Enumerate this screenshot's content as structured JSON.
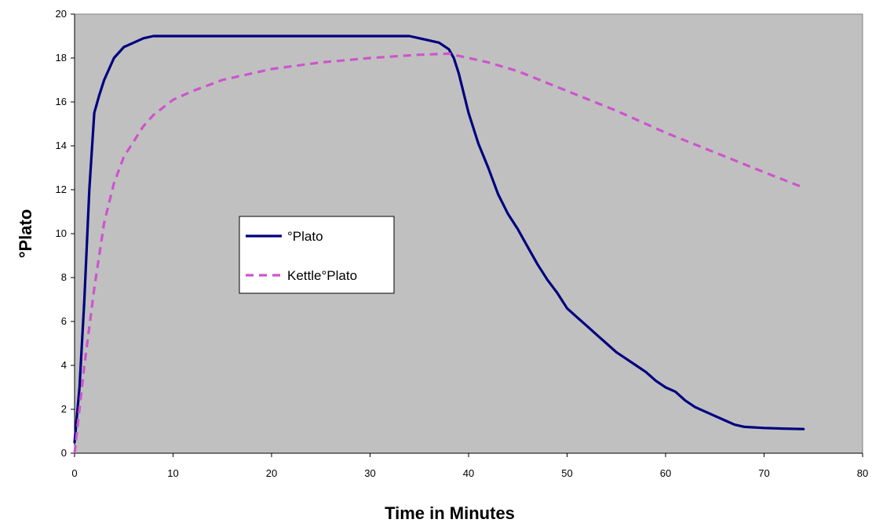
{
  "chart_data": {
    "type": "line",
    "title": "",
    "xlabel": "Time in Minutes",
    "ylabel": "°Plato",
    "xlim": [
      0,
      80
    ],
    "ylim": [
      0,
      20
    ],
    "x_ticks": [
      0,
      10,
      20,
      30,
      40,
      50,
      60,
      70,
      80
    ],
    "y_ticks": [
      0,
      2,
      4,
      6,
      8,
      10,
      12,
      14,
      16,
      18,
      20
    ],
    "grid": false,
    "legend_position": "center-left",
    "plot_background": "#c0c0c0",
    "series": [
      {
        "name": "°Plato",
        "color": "#000080",
        "style": "solid",
        "points": [
          [
            0,
            0.5
          ],
          [
            0.5,
            3
          ],
          [
            1,
            7
          ],
          [
            1.5,
            12
          ],
          [
            2,
            15.5
          ],
          [
            2.5,
            16.3
          ],
          [
            3,
            17
          ],
          [
            4,
            18
          ],
          [
            5,
            18.5
          ],
          [
            6,
            18.7
          ],
          [
            7,
            18.9
          ],
          [
            8,
            19
          ],
          [
            10,
            19
          ],
          [
            20,
            19
          ],
          [
            30,
            19
          ],
          [
            34,
            19
          ],
          [
            35,
            18.9
          ],
          [
            36,
            18.8
          ],
          [
            37,
            18.7
          ],
          [
            38,
            18.4
          ],
          [
            38.5,
            18
          ],
          [
            39,
            17.3
          ],
          [
            40,
            15.5
          ],
          [
            41,
            14.1
          ],
          [
            42,
            13
          ],
          [
            43,
            11.8
          ],
          [
            44,
            10.9
          ],
          [
            45,
            10.2
          ],
          [
            46,
            9.4
          ],
          [
            47,
            8.6
          ],
          [
            48,
            7.9
          ],
          [
            49,
            7.3
          ],
          [
            50,
            6.6
          ],
          [
            51,
            6.2
          ],
          [
            52,
            5.8
          ],
          [
            53,
            5.4
          ],
          [
            54,
            5
          ],
          [
            55,
            4.6
          ],
          [
            56,
            4.3
          ],
          [
            57,
            4
          ],
          [
            58,
            3.7
          ],
          [
            59,
            3.3
          ],
          [
            60,
            3
          ],
          [
            61,
            2.8
          ],
          [
            62,
            2.4
          ],
          [
            63,
            2.1
          ],
          [
            64,
            1.9
          ],
          [
            65,
            1.7
          ],
          [
            66,
            1.5
          ],
          [
            67,
            1.3
          ],
          [
            68,
            1.2
          ],
          [
            70,
            1.15
          ],
          [
            72,
            1.12
          ],
          [
            74,
            1.1
          ]
        ]
      },
      {
        "name": "Kettle°Plato",
        "color": "#cc55cc",
        "style": "dashed",
        "points": [
          [
            0,
            0
          ],
          [
            1,
            4
          ],
          [
            2,
            7.5
          ],
          [
            3,
            10.5
          ],
          [
            4,
            12.3
          ],
          [
            5,
            13.5
          ],
          [
            6,
            14.2
          ],
          [
            7,
            14.9
          ],
          [
            8,
            15.4
          ],
          [
            10,
            16.1
          ],
          [
            12,
            16.5
          ],
          [
            15,
            17
          ],
          [
            20,
            17.5
          ],
          [
            25,
            17.8
          ],
          [
            30,
            18
          ],
          [
            35,
            18.15
          ],
          [
            38,
            18.2
          ],
          [
            40,
            18
          ],
          [
            42,
            17.8
          ],
          [
            45,
            17.4
          ],
          [
            50,
            16.5
          ],
          [
            55,
            15.6
          ],
          [
            60,
            14.6
          ],
          [
            65,
            13.7
          ],
          [
            70,
            12.8
          ],
          [
            74,
            12.1
          ]
        ]
      }
    ]
  }
}
